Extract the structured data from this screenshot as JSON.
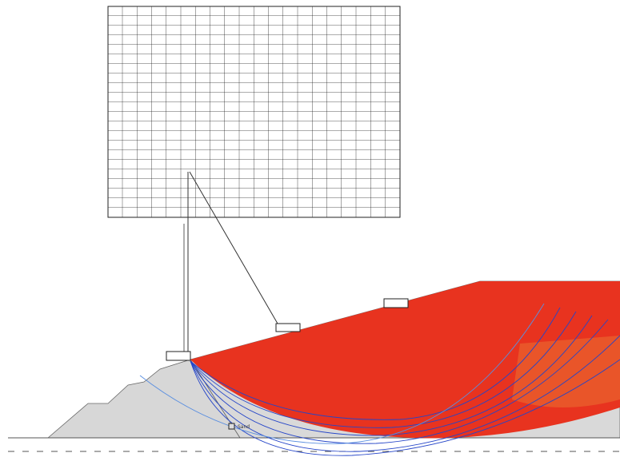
{
  "legend": {
    "material": "Sand"
  }
}
